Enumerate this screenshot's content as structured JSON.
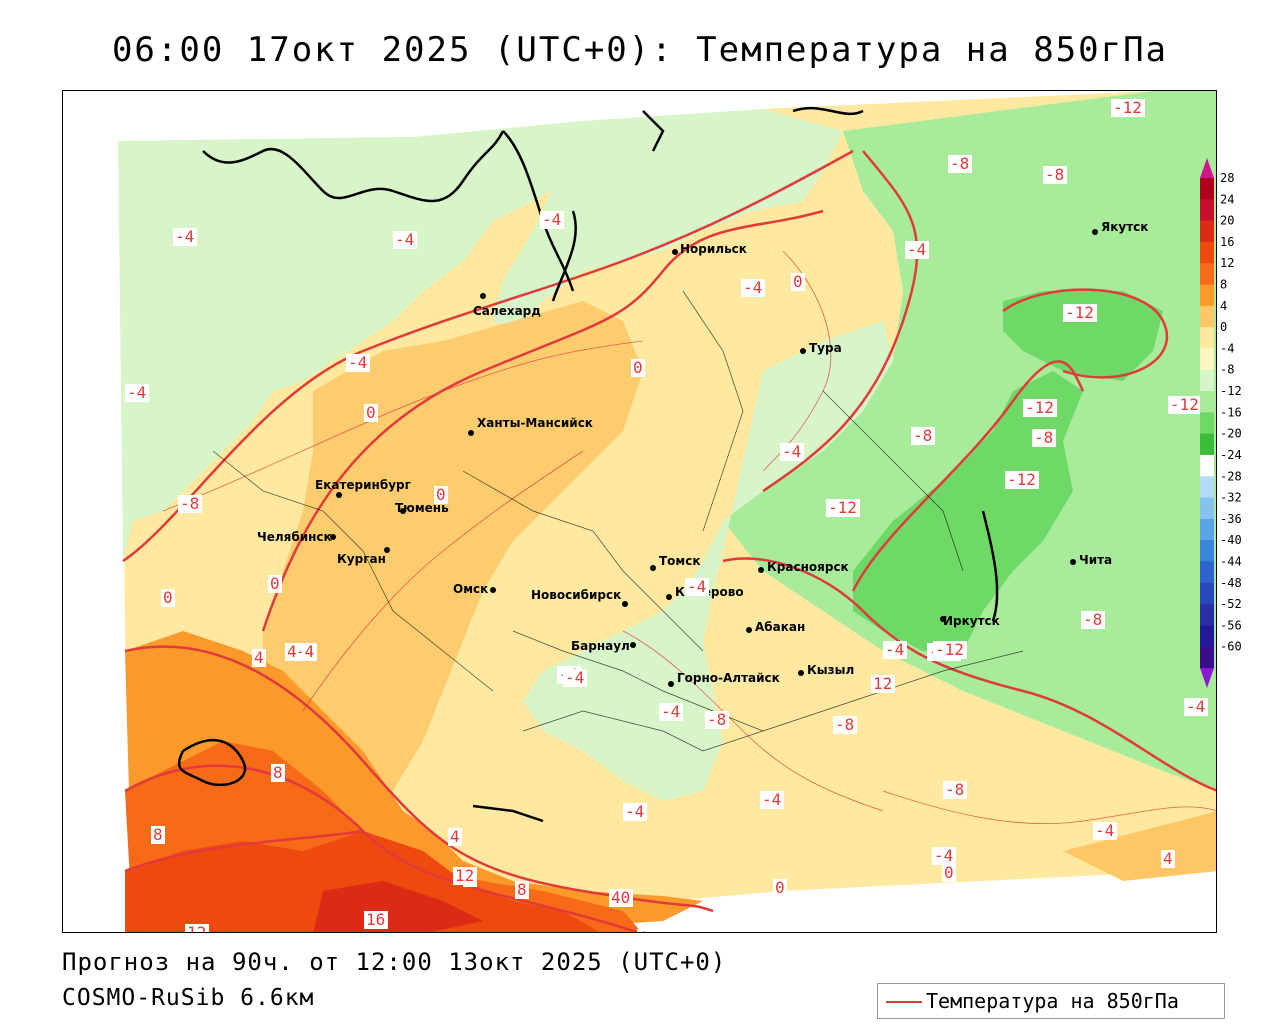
{
  "title": "06:00 17окт 2025 (UTC+0): Температура на 850гПа",
  "footer": {
    "forecast": "Прогноз на 90ч. от 12:00 13окт 2025 (UTC+0)",
    "model": "COSMO-RuSib 6.6км"
  },
  "legend": {
    "label": "Температура на 850гПа",
    "line_color": "#e23a3a"
  },
  "colorbar": {
    "ticks": [
      "28",
      "24",
      "20",
      "16",
      "12",
      "8",
      "4",
      "0",
      "-4",
      "-8",
      "-12",
      "-16",
      "-20",
      "-24",
      "-28",
      "-32",
      "-36",
      "-40",
      "-44",
      "-48",
      "-52",
      "-56",
      "-60"
    ],
    "colors": [
      "#b00020",
      "#c8102e",
      "#dd2a15",
      "#ee4a10",
      "#f76a18",
      "#fb9a2a",
      "#fdc766",
      "#ffe9a0",
      "#fff6c4",
      "#d7f5c8",
      "#a8eb9a",
      "#6ed966",
      "#3cbd3a",
      "#ffffff",
      "#b5dcf7",
      "#86c2f0",
      "#5aa4e8",
      "#3a84db",
      "#2f63cf",
      "#2b47bd",
      "#2a2fa8",
      "#24199a",
      "#3b0d8a"
    ],
    "top_arrow_color": "#d2148c",
    "bottom_arrow_color": "#8a1ad2"
  },
  "cities": [
    {
      "name": "Салехард"
    },
    {
      "name": "Норильск"
    },
    {
      "name": "Якутск"
    },
    {
      "name": "Тура"
    },
    {
      "name": "Ханты-Мансийск"
    },
    {
      "name": "Екатеринбург"
    },
    {
      "name": "Тюмень"
    },
    {
      "name": "Челябинск"
    },
    {
      "name": "Курган"
    },
    {
      "name": "Омск"
    },
    {
      "name": "Новосибирск"
    },
    {
      "name": "Томск"
    },
    {
      "name": "Красноярск"
    },
    {
      "name": "Кемерово"
    },
    {
      "name": "Барнаул"
    },
    {
      "name": "Абакан"
    },
    {
      "name": "Иркутск"
    },
    {
      "name": "Чита"
    },
    {
      "name": "Горно-Алтайск"
    },
    {
      "name": "Кызыл"
    }
  ],
  "isotherm_labels": [
    "-12",
    "-8",
    "-8",
    "-4",
    "-4",
    "-4",
    "-4",
    "0",
    "-4",
    "-12",
    "-12",
    "-12",
    "-8",
    "-4",
    "-4",
    "-4",
    "-8",
    "-12",
    "-12",
    "-8",
    "-4",
    "-4",
    "0",
    "0",
    "0",
    "0",
    "-4",
    "-8",
    "-12",
    "12",
    "-8",
    "-4",
    "-8",
    "-4",
    "-4",
    "-4",
    "0",
    "-8",
    "-4",
    "4",
    "-4",
    "4",
    "0",
    "-4",
    "0",
    "8",
    "8",
    "12",
    "8",
    "40",
    "16",
    "12",
    "8",
    "4",
    "4",
    "0",
    "-12",
    "-4"
  ],
  "colors": {
    "land_bg": "#ffe9a0",
    "isotherm": "#e23a3a"
  }
}
